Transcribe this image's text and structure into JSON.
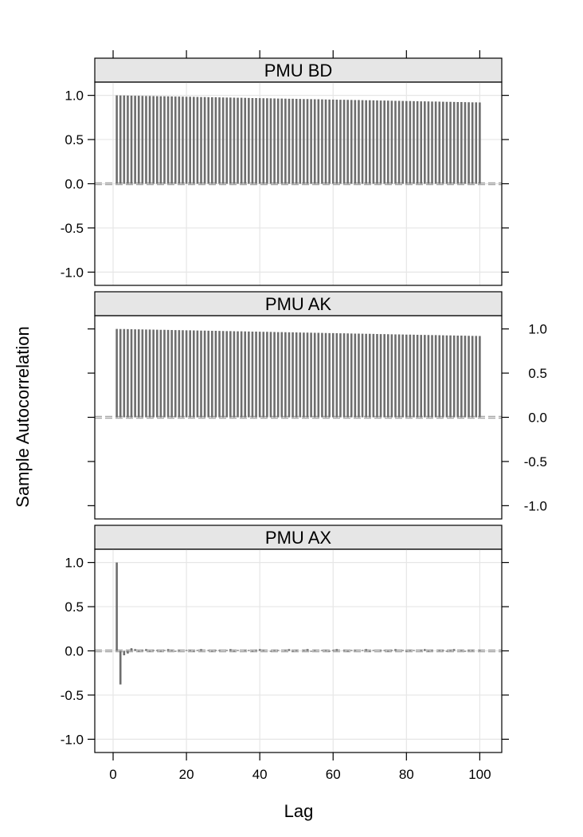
{
  "chart_data": {
    "type": "bar",
    "layout": "trellis, 3 panels stacked vertically, shared x axis",
    "xlabel": "Lag",
    "ylabel": "Sample Autocorrelation",
    "xlim": [
      -5,
      106
    ],
    "ylim": [
      -1.15,
      1.15
    ],
    "xticks": [
      0,
      20,
      40,
      60,
      80,
      100
    ],
    "yticks": [
      -1.0,
      -0.5,
      0.0,
      0.5,
      1.0
    ],
    "grid": true,
    "confidence_band": 0.01,
    "bar_color": "#6e6e6e",
    "grid_color": "#e6e6e6",
    "strip_color": "#e6e6e6",
    "panels": [
      {
        "name": "PMU BD",
        "y_axis_side": "left",
        "show_grid": true,
        "lags": {
          "from": 1,
          "to": 100
        },
        "acf_start": 1.0,
        "acf_end": 0.92
      },
      {
        "name": "PMU AK",
        "y_axis_side": "right",
        "show_grid": false,
        "lags": {
          "from": 1,
          "to": 100
        },
        "acf_start": 1.0,
        "acf_end": 0.92
      },
      {
        "name": "PMU AX",
        "y_axis_side": "left",
        "show_grid": true,
        "lags": {
          "from": 1,
          "to": 100
        },
        "acf_values": [
          1.0,
          -0.38,
          -0.05,
          -0.03,
          0.03,
          0.02,
          -0.01,
          0.01,
          0.02,
          -0.01,
          0.01,
          0.01,
          -0.01,
          0.01,
          0.02,
          0.01,
          -0.01,
          0.01,
          0.0,
          0.01,
          0.01,
          -0.01,
          0.01,
          0.02,
          0.0,
          0.01,
          -0.01,
          0.01,
          0.01,
          0.0,
          0.01,
          0.02,
          -0.01,
          0.01,
          0.0,
          0.01,
          0.01,
          -0.01,
          0.01,
          0.02,
          0.01,
          0.0,
          -0.01,
          0.01,
          0.01,
          0.0,
          0.01,
          0.02,
          -0.01,
          0.01,
          0.0,
          0.01,
          0.02,
          -0.01,
          0.01,
          0.0,
          0.01,
          0.01,
          -0.01,
          0.01,
          0.02,
          0.0,
          0.01,
          -0.01,
          0.01,
          0.01,
          0.0,
          0.01,
          0.02,
          -0.01,
          0.01,
          0.0,
          0.01,
          0.01,
          -0.01,
          0.01,
          0.02,
          0.0,
          0.01,
          -0.01,
          0.01,
          0.01,
          0.0,
          0.01,
          0.02,
          -0.01,
          0.01,
          0.0,
          0.01,
          0.01,
          -0.01,
          0.01,
          0.02,
          0.0,
          0.01,
          -0.01,
          0.01,
          0.01,
          0.0,
          0.01
        ]
      }
    ]
  }
}
